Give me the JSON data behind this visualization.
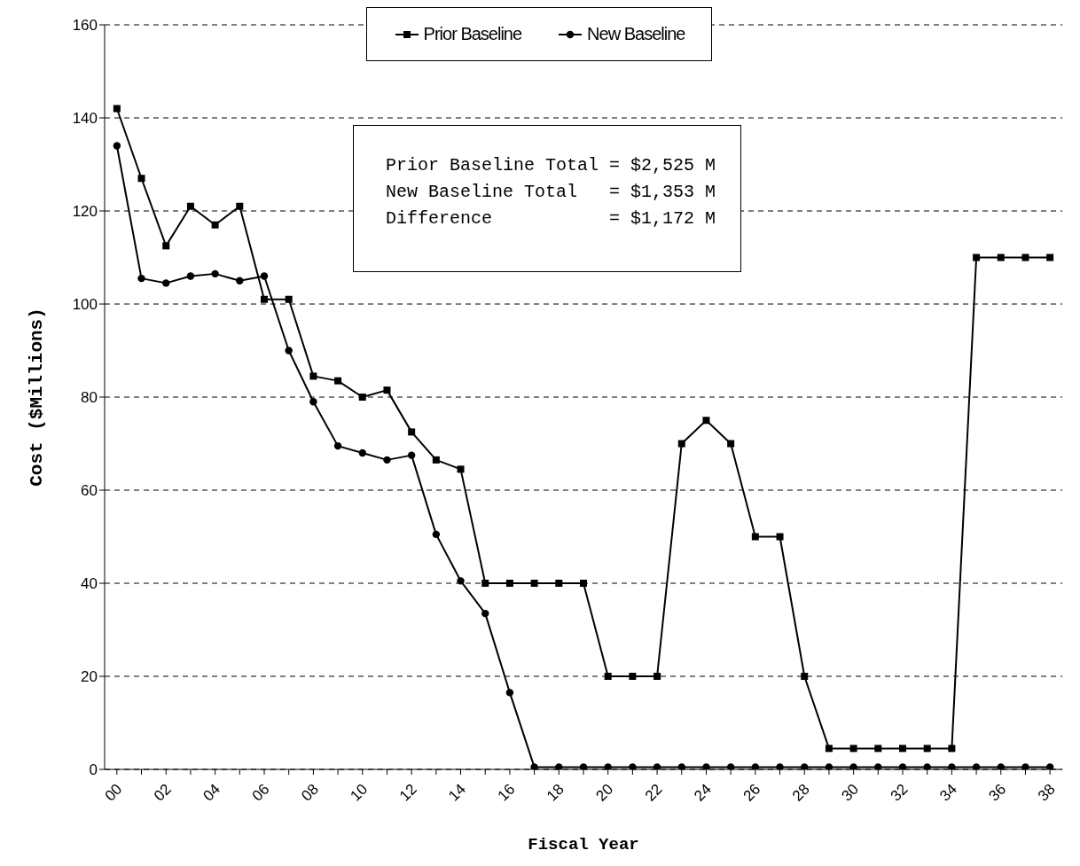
{
  "chart_data": {
    "type": "line",
    "xlabel": "Fiscal Year",
    "ylabel": "Cost ($Millions)",
    "categories": [
      "00",
      null,
      "02",
      null,
      "04",
      null,
      "06",
      null,
      "08",
      null,
      "10",
      null,
      "12",
      null,
      "14",
      null,
      "16",
      null,
      "18",
      null,
      "20",
      null,
      "22",
      null,
      "24",
      null,
      "26",
      null,
      "28",
      null,
      "30",
      null,
      "32",
      null,
      "34",
      null,
      "36",
      null,
      "38"
    ],
    "series": [
      {
        "name": "Prior Baseline",
        "color": "#000000",
        "marker": "square",
        "values": [
          142,
          127,
          112.5,
          121,
          117,
          121,
          101,
          101,
          84.5,
          83.5,
          80,
          81.5,
          72.5,
          66.5,
          64.5,
          40,
          40,
          40,
          40,
          40,
          20,
          20,
          20,
          70,
          75,
          70,
          50,
          50,
          20,
          4.5,
          4.5,
          4.5,
          4.5,
          4.5,
          4.5,
          110,
          110,
          110,
          110
        ]
      },
      {
        "name": "New Baseline",
        "color": "#000000",
        "marker": "circle",
        "values": [
          134,
          105.5,
          104.5,
          106,
          106.5,
          105,
          106,
          90,
          79,
          69.5,
          68,
          66.5,
          67.5,
          50.5,
          40.5,
          33.5,
          16.5,
          0.5,
          0.5,
          0.5,
          0.5,
          0.5,
          0.5,
          0.5,
          0.5,
          0.5,
          0.5,
          0.5,
          0.5,
          0.5,
          0.5,
          0.5,
          0.5,
          0.5,
          0.5,
          0.5,
          0.5,
          0.5,
          0.5
        ]
      }
    ],
    "ylim": [
      0,
      160
    ],
    "yticks": [
      0,
      20,
      40,
      60,
      80,
      100,
      120,
      140,
      160
    ],
    "grid": "y",
    "line_style": "solid",
    "legend": "top",
    "annotations": [
      "Prior Baseline Total = $2,525 M",
      "New Baseline Total   = $1,353 M",
      "Difference           = $1,172 M"
    ]
  }
}
